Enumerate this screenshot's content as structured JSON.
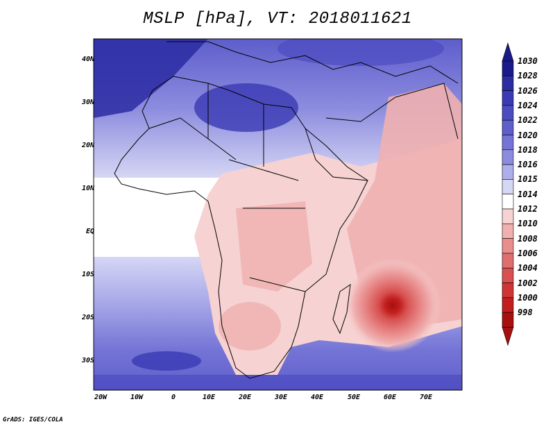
{
  "title": "MSLP [hPa], VT: 2018011621",
  "credit": "GrADS: IGES/COLA",
  "axes": {
    "lat_ticks": [
      "40N",
      "30N",
      "20N",
      "10N",
      "EQ",
      "10S",
      "20S",
      "30S"
    ],
    "lon_ticks": [
      "20W",
      "10W",
      "0",
      "10E",
      "20E",
      "30E",
      "40E",
      "50E",
      "60E",
      "70E"
    ]
  },
  "colorbar": {
    "levels": [
      "1030",
      "1028",
      "1026",
      "1024",
      "1022",
      "1020",
      "1018",
      "1016",
      "1015",
      "1014",
      "1012",
      "1010",
      "1008",
      "1006",
      "1004",
      "1002",
      "1000",
      "998"
    ],
    "colors": [
      "#1a1a8c",
      "#2b2ba3",
      "#3a3ab4",
      "#4b4bc2",
      "#5e5ecc",
      "#7474d6",
      "#8c8cdf",
      "#aeaeea",
      "#d6d6f5",
      "#ffffff",
      "#f6d2d2",
      "#f0b0b0",
      "#e98e8e",
      "#e06e6e",
      "#d85050",
      "#cf3535",
      "#c21e1e",
      "#a81010"
    ]
  }
}
